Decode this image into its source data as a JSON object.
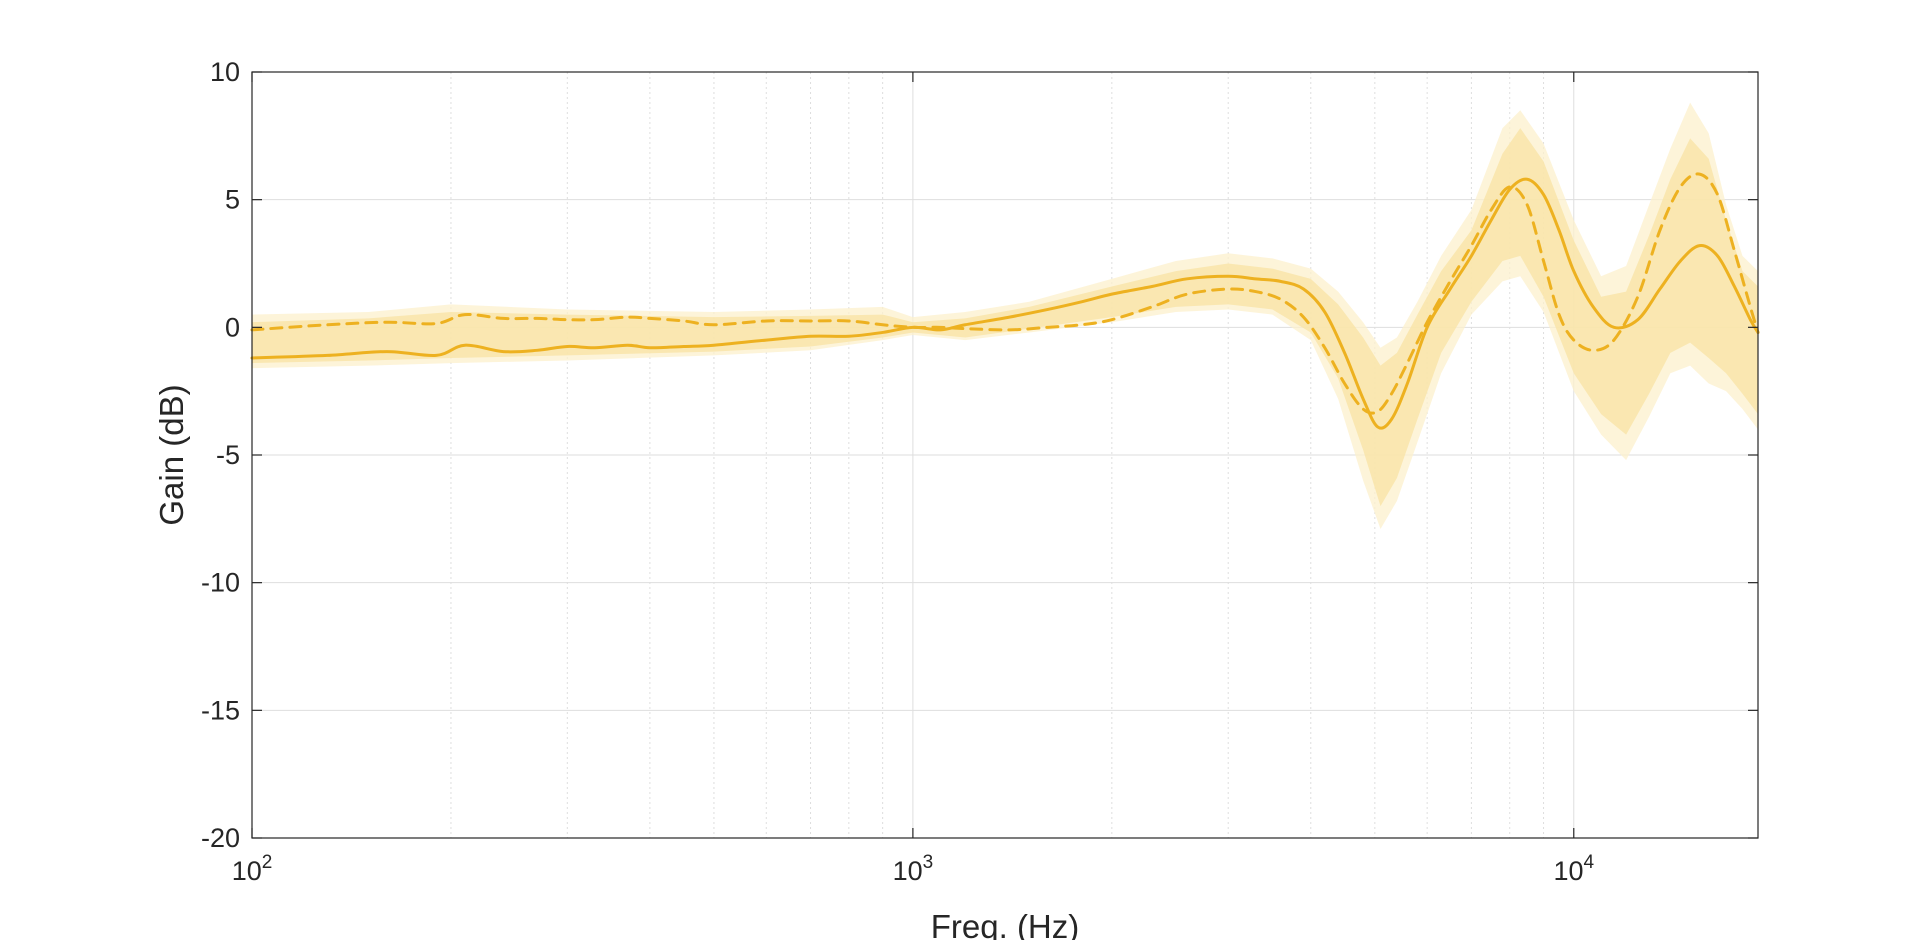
{
  "chart_data": {
    "type": "line",
    "title": "",
    "xlabel": "Freq. (Hz)",
    "ylabel": "Gain (dB)",
    "x_scale": "log",
    "xlim": [
      100,
      19000
    ],
    "ylim": [
      -20,
      10
    ],
    "grid": true,
    "legend": "none",
    "yticks": [
      10,
      5,
      0,
      -5,
      -10,
      -15,
      -20
    ],
    "ytick_labels": [
      "10",
      "5",
      "0",
      "-5",
      "-10",
      "-15",
      "-20"
    ],
    "xticks": [
      {
        "value": 100,
        "base": "10",
        "exp": "2"
      },
      {
        "value": 1000,
        "base": "10",
        "exp": "3"
      },
      {
        "value": 10000,
        "base": "10",
        "exp": "4"
      }
    ],
    "colors": {
      "line": "#EDB120",
      "band_outer": "#FCF0CC",
      "band_inner": "#F8E3A3",
      "grid": "#DEDEDE",
      "axis": "#262626"
    },
    "series": [
      {
        "style": "solid",
        "x": [
          100,
          130,
          160,
          190,
          210,
          240,
          270,
          300,
          330,
          370,
          400,
          450,
          500,
          600,
          700,
          800,
          900,
          1000,
          1100,
          1200,
          1400,
          1600,
          1800,
          2000,
          2300,
          2600,
          3000,
          3300,
          3600,
          3900,
          4200,
          4500,
          4800,
          5050,
          5300,
          5600,
          6000,
          6500,
          7000,
          7500,
          8000,
          8500,
          9000,
          9500,
          10000,
          10700,
          11500,
          12500,
          13500,
          14500,
          15500,
          16500,
          17500,
          18500,
          19000
        ],
        "y": [
          -1.2,
          -1.1,
          -0.95,
          -1.1,
          -0.7,
          -0.95,
          -0.9,
          -0.75,
          -0.8,
          -0.7,
          -0.8,
          -0.75,
          -0.7,
          -0.5,
          -0.35,
          -0.35,
          -0.2,
          0,
          -0.1,
          0.1,
          0.4,
          0.7,
          1.0,
          1.3,
          1.6,
          1.9,
          2.0,
          1.9,
          1.8,
          1.5,
          0.6,
          -1.0,
          -2.8,
          -3.9,
          -3.6,
          -2.2,
          0.0,
          1.5,
          2.8,
          4.2,
          5.4,
          5.8,
          5.2,
          3.8,
          2.2,
          0.8,
          0.0,
          0.3,
          1.5,
          2.6,
          3.2,
          2.8,
          1.6,
          0.3,
          -0.2
        ]
      },
      {
        "style": "dashed",
        "x": [
          100,
          130,
          160,
          190,
          210,
          240,
          270,
          300,
          330,
          370,
          400,
          450,
          500,
          600,
          700,
          800,
          900,
          1000,
          1100,
          1200,
          1400,
          1600,
          1800,
          2000,
          2300,
          2600,
          3000,
          3300,
          3600,
          3900,
          4200,
          4500,
          4800,
          5050,
          5300,
          5600,
          6000,
          6500,
          7000,
          7500,
          8000,
          8500,
          9000,
          9500,
          10000,
          10700,
          11500,
          12500,
          13500,
          14500,
          15500,
          16500,
          17500,
          18500,
          19000
        ],
        "y": [
          -0.1,
          0.1,
          0.2,
          0.15,
          0.5,
          0.35,
          0.35,
          0.3,
          0.3,
          0.4,
          0.35,
          0.25,
          0.1,
          0.25,
          0.25,
          0.25,
          0.1,
          0,
          0.0,
          -0.05,
          -0.1,
          0.0,
          0.1,
          0.3,
          0.8,
          1.3,
          1.5,
          1.4,
          1.1,
          0.4,
          -0.8,
          -2.2,
          -3.2,
          -3.3,
          -2.6,
          -1.4,
          0.2,
          1.8,
          3.2,
          4.6,
          5.5,
          4.8,
          2.6,
          0.5,
          -0.5,
          -0.9,
          -0.5,
          1.2,
          3.8,
          5.5,
          6.0,
          5.2,
          3.0,
          0.8,
          -0.2
        ]
      }
    ],
    "bands": [
      {
        "name_hint": "outer",
        "x": [
          100,
          150,
          200,
          300,
          500,
          700,
          900,
          1000,
          1200,
          1500,
          2000,
          2500,
          3000,
          3500,
          4000,
          4400,
          4800,
          5100,
          5400,
          5800,
          6300,
          7000,
          7800,
          8300,
          9000,
          10000,
          11000,
          12000,
          13000,
          14000,
          15000,
          16000,
          17000,
          18000,
          19000
        ],
        "upper": [
          0.5,
          0.6,
          0.9,
          0.7,
          0.6,
          0.7,
          0.8,
          0.4,
          0.6,
          1.0,
          1.9,
          2.6,
          2.9,
          2.7,
          2.3,
          1.4,
          0.2,
          -0.8,
          -0.4,
          1.0,
          2.8,
          4.6,
          7.8,
          8.5,
          7.2,
          4.2,
          2.0,
          2.4,
          4.8,
          7.0,
          8.8,
          7.6,
          4.8,
          2.8,
          2.2
        ],
        "lower": [
          -1.6,
          -1.5,
          -1.4,
          -1.3,
          -1.1,
          -0.9,
          -0.5,
          -0.3,
          -0.5,
          -0.2,
          0.2,
          0.6,
          0.7,
          0.5,
          -0.5,
          -2.8,
          -6.0,
          -7.9,
          -6.8,
          -4.5,
          -1.8,
          0.5,
          1.8,
          2.0,
          0.6,
          -2.5,
          -4.2,
          -5.2,
          -3.5,
          -1.8,
          -1.5,
          -2.2,
          -2.5,
          -3.2,
          -4.0
        ]
      },
      {
        "name_hint": "inner",
        "x": [
          100,
          150,
          200,
          300,
          500,
          700,
          900,
          1000,
          1200,
          1500,
          2000,
          2500,
          3000,
          3500,
          4000,
          4400,
          4800,
          5100,
          5400,
          5800,
          6300,
          7000,
          7800,
          8300,
          9000,
          10000,
          11000,
          12000,
          13000,
          14000,
          15000,
          16000,
          17000,
          18000,
          19000
        ],
        "upper": [
          0.2,
          0.35,
          0.6,
          0.5,
          0.4,
          0.45,
          0.5,
          0.2,
          0.35,
          0.8,
          1.6,
          2.2,
          2.5,
          2.3,
          1.9,
          0.9,
          -0.4,
          -1.5,
          -1.0,
          0.5,
          2.2,
          3.8,
          6.8,
          7.8,
          6.5,
          3.4,
          1.2,
          1.4,
          3.6,
          5.8,
          7.4,
          6.6,
          4.2,
          2.2,
          1.6
        ],
        "lower": [
          -1.4,
          -1.3,
          -1.2,
          -1.1,
          -0.95,
          -0.75,
          -0.4,
          -0.2,
          -0.4,
          -0.05,
          0.4,
          0.8,
          0.9,
          0.7,
          -0.2,
          -2.0,
          -4.8,
          -7.0,
          -5.9,
          -3.6,
          -1.0,
          1.0,
          2.6,
          2.8,
          1.2,
          -1.8,
          -3.4,
          -4.2,
          -2.6,
          -1.0,
          -0.6,
          -1.2,
          -1.8,
          -2.6,
          -3.4
        ]
      }
    ]
  }
}
